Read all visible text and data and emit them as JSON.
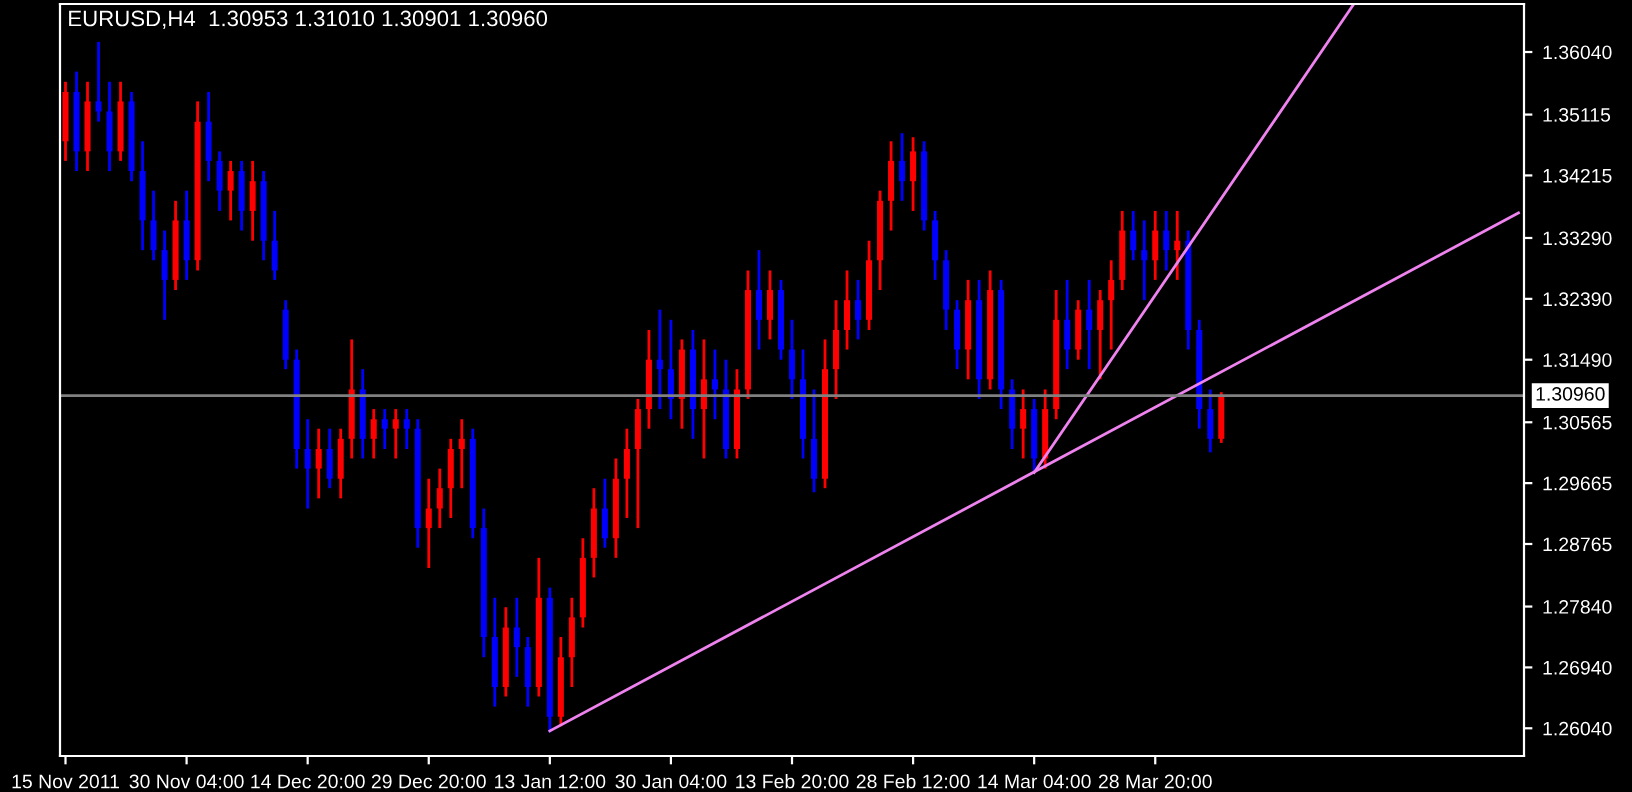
{
  "chart_data": {
    "type": "candlestick",
    "title": "EURUSD,H4  1.30953 1.31010 1.30901 1.30960",
    "categories": [
      "15 Nov 2011",
      null,
      null,
      null,
      null,
      null,
      null,
      null,
      null,
      null,
      null,
      "30 Nov 04:00",
      null,
      null,
      null,
      null,
      null,
      null,
      null,
      null,
      null,
      null,
      "14 Dec 20:00",
      null,
      null,
      null,
      null,
      null,
      null,
      null,
      null,
      null,
      null,
      "29 Dec 20:00",
      null,
      null,
      null,
      null,
      null,
      null,
      null,
      null,
      null,
      null,
      "13 Jan 12:00",
      null,
      null,
      null,
      null,
      null,
      null,
      null,
      null,
      null,
      null,
      "30 Jan 04:00",
      null,
      null,
      null,
      null,
      null,
      null,
      null,
      null,
      null,
      null,
      "13 Feb 20:00",
      null,
      null,
      null,
      null,
      null,
      null,
      null,
      null,
      null,
      null,
      "28 Feb 12:00",
      null,
      null,
      null,
      null,
      null,
      null,
      null,
      null,
      null,
      null,
      "14 Mar 04:00",
      null,
      null,
      null,
      null,
      null,
      null,
      null,
      null,
      null,
      null,
      "28 Mar 20:00",
      null,
      null,
      null,
      null,
      null,
      null,
      null,
      null,
      null,
      null,
      null,
      null,
      null,
      null,
      null,
      null,
      null,
      null,
      null,
      null,
      null,
      null,
      null,
      null,
      null,
      null,
      null,
      null,
      null,
      null,
      null,
      null,
      null
    ],
    "ohlc": [
      [
        1.3472,
        1.356,
        1.3443,
        1.3545
      ],
      [
        1.3545,
        1.3575,
        1.3428,
        1.3457
      ],
      [
        1.3457,
        1.356,
        1.3428,
        1.3531
      ],
      [
        1.3531,
        1.3619,
        1.3501,
        1.3516
      ],
      [
        1.3516,
        1.356,
        1.3428,
        1.3457
      ],
      [
        1.3457,
        1.356,
        1.3443,
        1.3531
      ],
      [
        1.3531,
        1.3545,
        1.3413,
        1.3428
      ],
      [
        1.3428,
        1.3472,
        1.3311,
        1.3355
      ],
      [
        1.3355,
        1.3399,
        1.3296,
        1.3311
      ],
      [
        1.3311,
        1.334,
        1.3208,
        1.3267
      ],
      [
        1.3267,
        1.3384,
        1.3252,
        1.3355
      ],
      [
        1.3355,
        1.3399,
        1.3267,
        1.3296
      ],
      [
        1.3296,
        1.3531,
        1.3281,
        1.3501
      ],
      [
        1.3501,
        1.3545,
        1.3413,
        1.3443
      ],
      [
        1.3443,
        1.3457,
        1.3369,
        1.3399
      ],
      [
        1.3399,
        1.3443,
        1.3355,
        1.3428
      ],
      [
        1.3428,
        1.3443,
        1.334,
        1.3369
      ],
      [
        1.3369,
        1.3443,
        1.3325,
        1.3413
      ],
      [
        1.3413,
        1.3428,
        1.3296,
        1.3325
      ],
      [
        1.3325,
        1.3369,
        1.3267,
        1.3281
      ],
      [
        1.3223,
        1.3237,
        1.3135,
        1.3149
      ],
      [
        1.3149,
        1.3164,
        1.2988,
        1.3017
      ],
      [
        1.3017,
        1.3061,
        1.2929,
        1.2988
      ],
      [
        1.2988,
        1.3047,
        1.2944,
        1.3017
      ],
      [
        1.3017,
        1.3047,
        1.2959,
        1.2973
      ],
      [
        1.2973,
        1.3047,
        1.2944,
        1.3032
      ],
      [
        1.3032,
        1.3179,
        1.3003,
        1.3105
      ],
      [
        1.3105,
        1.3135,
        1.3003,
        1.3032
      ],
      [
        1.3032,
        1.3076,
        1.3003,
        1.3061
      ],
      [
        1.3061,
        1.3076,
        1.3017,
        1.3047
      ],
      [
        1.3047,
        1.3076,
        1.3003,
        1.3061
      ],
      [
        1.3061,
        1.3076,
        1.3017,
        1.3047
      ],
      [
        1.3047,
        1.3061,
        1.2871,
        1.29
      ],
      [
        1.29,
        1.2973,
        1.2841,
        1.2929
      ],
      [
        1.2929,
        1.2988,
        1.29,
        1.2959
      ],
      [
        1.2959,
        1.3032,
        1.2915,
        1.3017
      ],
      [
        1.3017,
        1.3061,
        1.2959,
        1.3032
      ],
      [
        1.3032,
        1.3047,
        1.2885,
        1.29
      ],
      [
        1.29,
        1.2929,
        1.2709,
        1.2739
      ],
      [
        1.2739,
        1.2797,
        1.2636,
        1.2665
      ],
      [
        1.2665,
        1.2783,
        1.2651,
        1.2753
      ],
      [
        1.2753,
        1.2797,
        1.268,
        1.2724
      ],
      [
        1.2724,
        1.2739,
        1.2636,
        1.2665
      ],
      [
        1.2665,
        1.2856,
        1.2651,
        1.2797
      ],
      [
        1.2797,
        1.2812,
        1.2598,
        1.2621
      ],
      [
        1.2621,
        1.2739,
        1.2607,
        1.2709
      ],
      [
        1.2709,
        1.2797,
        1.2665,
        1.2768
      ],
      [
        1.2768,
        1.2885,
        1.2753,
        1.2856
      ],
      [
        1.2856,
        1.2959,
        1.2827,
        1.2929
      ],
      [
        1.2929,
        1.2973,
        1.2871,
        1.2885
      ],
      [
        1.2885,
        1.3003,
        1.2856,
        1.2973
      ],
      [
        1.2973,
        1.3047,
        1.2915,
        1.3017
      ],
      [
        1.3017,
        1.3091,
        1.29,
        1.3076
      ],
      [
        1.3076,
        1.3193,
        1.3047,
        1.3149
      ],
      [
        1.3149,
        1.3223,
        1.3076,
        1.3135
      ],
      [
        1.3135,
        1.3208,
        1.3061,
        1.3091
      ],
      [
        1.3091,
        1.3179,
        1.3047,
        1.3164
      ],
      [
        1.3164,
        1.3193,
        1.3032,
        1.3076
      ],
      [
        1.3076,
        1.3179,
        1.3003,
        1.312
      ],
      [
        1.312,
        1.3164,
        1.3061,
        1.3105
      ],
      [
        1.3105,
        1.3149,
        1.3003,
        1.3017
      ],
      [
        1.3017,
        1.3135,
        1.3003,
        1.3105
      ],
      [
        1.3105,
        1.3281,
        1.3091,
        1.3252
      ],
      [
        1.3252,
        1.3311,
        1.3164,
        1.3208
      ],
      [
        1.3208,
        1.3281,
        1.3179,
        1.3252
      ],
      [
        1.3252,
        1.3267,
        1.3149,
        1.3164
      ],
      [
        1.3164,
        1.3208,
        1.3091,
        1.312
      ],
      [
        1.312,
        1.3164,
        1.3003,
        1.3032
      ],
      [
        1.3032,
        1.3105,
        1.2953,
        1.2973
      ],
      [
        1.2973,
        1.3179,
        1.2959,
        1.3135
      ],
      [
        1.3135,
        1.3237,
        1.3091,
        1.3193
      ],
      [
        1.3193,
        1.3281,
        1.3164,
        1.3237
      ],
      [
        1.3237,
        1.3267,
        1.3179,
        1.3208
      ],
      [
        1.3208,
        1.3325,
        1.3193,
        1.3296
      ],
      [
        1.3296,
        1.3399,
        1.3252,
        1.3384
      ],
      [
        1.3384,
        1.3472,
        1.334,
        1.3443
      ],
      [
        1.3443,
        1.3484,
        1.3384,
        1.3413
      ],
      [
        1.3413,
        1.3478,
        1.3369,
        1.3457
      ],
      [
        1.3457,
        1.3472,
        1.334,
        1.3355
      ],
      [
        1.3355,
        1.3369,
        1.3267,
        1.3296
      ],
      [
        1.3296,
        1.3311,
        1.3193,
        1.3223
      ],
      [
        1.3223,
        1.3237,
        1.3135,
        1.3164
      ],
      [
        1.3164,
        1.3267,
        1.312,
        1.3237
      ],
      [
        1.3237,
        1.3267,
        1.3091,
        1.312
      ],
      [
        1.312,
        1.3281,
        1.3105,
        1.3252
      ],
      [
        1.3252,
        1.3267,
        1.3076,
        1.3105
      ],
      [
        1.3105,
        1.312,
        1.3017,
        1.3047
      ],
      [
        1.3047,
        1.3105,
        1.3003,
        1.3076
      ],
      [
        1.3076,
        1.3091,
        1.2982,
        1.3003
      ],
      [
        1.3003,
        1.3105,
        1.2988,
        1.3076
      ],
      [
        1.3076,
        1.3252,
        1.3061,
        1.3208
      ],
      [
        1.3208,
        1.3267,
        1.3135,
        1.3164
      ],
      [
        1.3164,
        1.3237,
        1.3149,
        1.3223
      ],
      [
        1.3223,
        1.3267,
        1.3135,
        1.3193
      ],
      [
        1.3193,
        1.3252,
        1.312,
        1.3237
      ],
      [
        1.3237,
        1.3296,
        1.3164,
        1.3267
      ],
      [
        1.3267,
        1.3369,
        1.3252,
        1.334
      ],
      [
        1.334,
        1.3369,
        1.3296,
        1.3311
      ],
      [
        1.3311,
        1.3355,
        1.3237,
        1.3296
      ],
      [
        1.3296,
        1.3369,
        1.3267,
        1.334
      ],
      [
        1.334,
        1.3369,
        1.3281,
        1.3311
      ],
      [
        1.3311,
        1.3369,
        1.3267,
        1.3325
      ],
      [
        1.3325,
        1.334,
        1.3164,
        1.3193
      ],
      [
        1.3193,
        1.3208,
        1.3047,
        1.3076
      ],
      [
        1.3076,
        1.3105,
        1.3012,
        1.3032
      ],
      [
        1.3032,
        1.3101,
        1.3026,
        1.3096
      ],
      null,
      null,
      null,
      null,
      null,
      null,
      null,
      null,
      null,
      null,
      null,
      null,
      null,
      null,
      null,
      null,
      null,
      null,
      null,
      null,
      null,
      null,
      null,
      null,
      null,
      null,
      null
    ],
    "colors": [
      "#ff0000",
      "#0000ff",
      "#ff0000",
      "#0000ff",
      "#0000ff",
      "#ff0000",
      "#0000ff",
      "#0000ff",
      "#0000ff",
      "#0000ff",
      "#ff0000",
      "#0000ff",
      "#ff0000",
      "#0000ff",
      "#0000ff",
      "#ff0000",
      "#0000ff",
      "#ff0000",
      "#0000ff",
      "#0000ff",
      "#0000ff",
      "#0000ff",
      "#0000ff",
      "#ff0000",
      "#0000ff",
      "#ff0000",
      "#ff0000",
      "#0000ff",
      "#ff0000",
      "#0000ff",
      "#ff0000",
      "#0000ff",
      "#0000ff",
      "#ff0000",
      "#ff0000",
      "#ff0000",
      "#ff0000",
      "#0000ff",
      "#0000ff",
      "#0000ff",
      "#ff0000",
      "#0000ff",
      "#0000ff",
      "#ff0000",
      "#0000ff",
      "#ff0000",
      "#ff0000",
      "#ff0000",
      "#ff0000",
      "#0000ff",
      "#ff0000",
      "#ff0000",
      "#ff0000",
      "#ff0000",
      "#0000ff",
      "#0000ff",
      "#ff0000",
      "#0000ff",
      "#ff0000",
      "#0000ff",
      "#0000ff",
      "#ff0000",
      "#ff0000",
      "#0000ff",
      "#ff0000",
      "#0000ff",
      "#0000ff",
      "#0000ff",
      "#0000ff",
      "#ff0000",
      "#ff0000",
      "#ff0000",
      "#0000ff",
      "#ff0000",
      "#ff0000",
      "#ff0000",
      "#0000ff",
      "#ff0000",
      "#0000ff",
      "#0000ff",
      "#0000ff",
      "#0000ff",
      "#ff0000",
      "#0000ff",
      "#ff0000",
      "#0000ff",
      "#0000ff",
      "#ff0000",
      "#0000ff",
      "#ff0000",
      "#ff0000",
      "#0000ff",
      "#ff0000",
      "#0000ff",
      "#ff0000",
      "#ff0000",
      "#ff0000",
      "#0000ff",
      "#0000ff",
      "#ff0000",
      "#0000ff",
      "#ff0000",
      "#0000ff",
      "#0000ff",
      "#0000ff",
      "#ff0000",
      null,
      null,
      null,
      null,
      null,
      null,
      null,
      null,
      null,
      null,
      null,
      null,
      null,
      null,
      null,
      null,
      null,
      null,
      null,
      null,
      null,
      null,
      null,
      null,
      null,
      null,
      null
    ],
    "series": [
      {
        "type": "line",
        "color": "#ee82ee",
        "values": [
          null,
          null,
          null,
          null,
          null,
          null,
          null,
          null,
          null,
          null,
          null,
          null,
          null,
          null,
          null,
          null,
          null,
          null,
          null,
          null,
          null,
          null,
          null,
          null,
          null,
          null,
          null,
          null,
          null,
          null,
          null,
          null,
          null,
          null,
          null,
          null,
          null,
          null,
          null,
          null,
          null,
          null,
          null,
          null,
          1.26,
          null,
          null,
          null,
          null,
          null,
          null,
          null,
          null,
          null,
          null,
          null,
          null,
          null,
          null,
          null,
          null,
          null,
          null,
          null,
          null,
          null,
          null,
          null,
          null,
          null,
          null,
          null,
          null,
          null,
          null,
          null,
          null,
          null,
          null,
          null,
          null,
          null,
          null,
          null,
          null,
          null,
          null,
          null,
          null,
          null,
          null,
          null,
          null,
          null,
          null,
          null,
          null,
          null,
          null,
          null,
          null,
          null,
          null,
          null,
          null,
          null,
          null,
          null,
          null,
          null,
          null,
          null,
          null,
          null,
          null,
          null,
          null,
          null,
          null,
          null,
          null,
          null,
          null,
          null,
          null,
          null,
          null,
          null,
          null,
          null,
          null,
          null,
          1.3366
        ]
      },
      {
        "type": "line",
        "color": "#ee82ee",
        "values": [
          null,
          null,
          null,
          null,
          null,
          null,
          null,
          null,
          null,
          null,
          null,
          null,
          null,
          null,
          null,
          null,
          null,
          null,
          null,
          null,
          null,
          null,
          null,
          null,
          null,
          null,
          null,
          null,
          null,
          null,
          null,
          null,
          null,
          null,
          null,
          null,
          null,
          null,
          null,
          null,
          null,
          null,
          null,
          null,
          null,
          null,
          null,
          null,
          null,
          null,
          null,
          null,
          null,
          null,
          null,
          null,
          null,
          null,
          null,
          null,
          null,
          null,
          null,
          null,
          null,
          null,
          null,
          null,
          null,
          null,
          null,
          null,
          null,
          null,
          null,
          null,
          null,
          null,
          null,
          null,
          null,
          null,
          null,
          null,
          null,
          null,
          null,
          null,
          1.2982,
          null,
          null,
          null,
          null,
          null,
          null,
          null,
          null,
          null,
          null,
          null,
          null,
          null,
          null,
          null,
          null,
          null,
          null,
          null,
          null,
          null,
          null,
          null,
          null,
          null,
          null,
          null,
          null,
          1.3674,
          null,
          null,
          null,
          null,
          null,
          null,
          null,
          null,
          null,
          null,
          null,
          null,
          null,
          null,
          null
        ]
      }
    ],
    "ref_lines": [
      {
        "axis": "y",
        "value": 1.3096,
        "label": "1.30960",
        "color": "#808080"
      }
    ],
    "ylim": [
      1.2563,
      1.3675
    ],
    "yticks": [
      {
        "value": 1.3604,
        "label": "1.36040"
      },
      {
        "value": 1.35115,
        "label": "1.35115"
      },
      {
        "value": 1.34215,
        "label": "1.34215"
      },
      {
        "value": 1.3329,
        "label": "1.33290"
      },
      {
        "value": 1.3239,
        "label": "1.32390"
      },
      {
        "value": 1.3149,
        "label": "1.31490"
      },
      {
        "value": 1.30565,
        "label": "1.30565"
      },
      {
        "value": 1.29665,
        "label": "1.29665"
      },
      {
        "value": 1.28765,
        "label": "1.28765"
      },
      {
        "value": 1.2784,
        "label": "1.27840"
      },
      {
        "value": 1.2694,
        "label": "1.26940"
      },
      {
        "value": 1.2604,
        "label": "1.26040"
      }
    ],
    "grid": false
  }
}
